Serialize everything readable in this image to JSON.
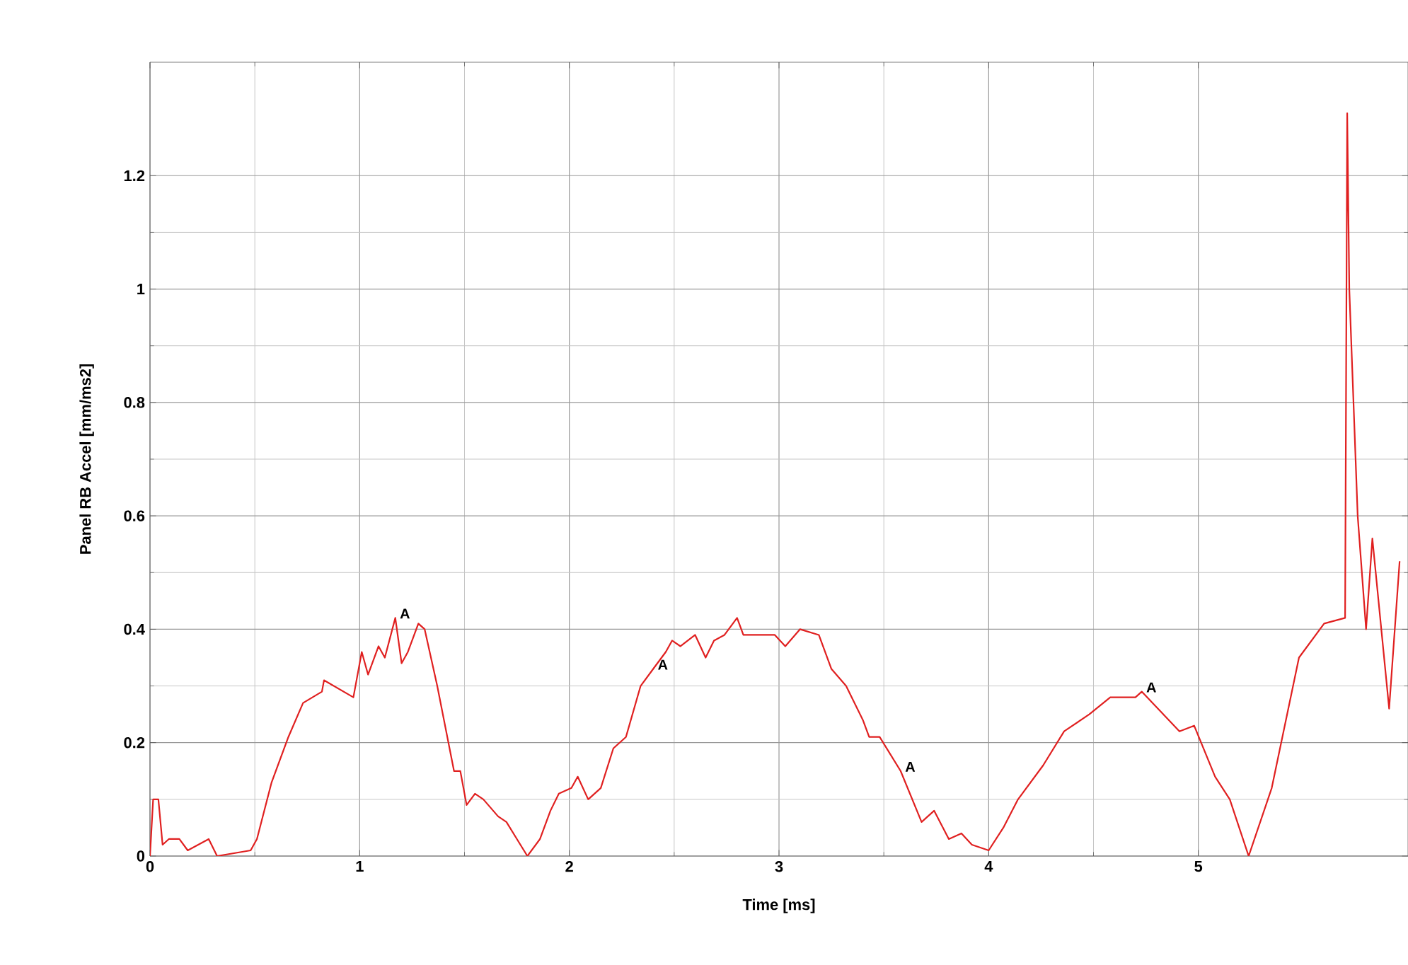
{
  "chart_data": {
    "type": "line",
    "xlabel": "Time [ms]",
    "ylabel": "Panel RB Accel [mm/ms2]",
    "xlim": [
      0,
      6
    ],
    "ylim": [
      0,
      1.4
    ],
    "xticks": [
      0,
      1,
      2,
      3,
      4,
      5
    ],
    "yticks": [
      0,
      0.2,
      0.4,
      0.6,
      0.8,
      1,
      1.2
    ],
    "grid": true,
    "line_style": "solid",
    "series": [
      {
        "color": "#e02020",
        "x": [
          0.0,
          0.015,
          0.04,
          0.06,
          0.09,
          0.14,
          0.18,
          0.28,
          0.32,
          0.48,
          0.51,
          0.58,
          0.66,
          0.73,
          0.82,
          0.83,
          0.97,
          1.01,
          1.04,
          1.09,
          1.12,
          1.17,
          1.2,
          1.23,
          1.28,
          1.31,
          1.37,
          1.45,
          1.48,
          1.51,
          1.55,
          1.59,
          1.66,
          1.7,
          1.75,
          1.8,
          1.86,
          1.91,
          1.95,
          2.01,
          2.04,
          2.09,
          2.15,
          2.21,
          2.27,
          2.34,
          2.4,
          2.46,
          2.49,
          2.53,
          2.6,
          2.65,
          2.69,
          2.74,
          2.8,
          2.83,
          2.92,
          2.98,
          3.03,
          3.1,
          3.19,
          3.25,
          3.32,
          3.4,
          3.43,
          3.48,
          3.58,
          3.68,
          3.74,
          3.81,
          3.87,
          3.92,
          4.0,
          4.07,
          4.14,
          4.26,
          4.36,
          4.48,
          4.58,
          4.7,
          4.73,
          4.91,
          4.98,
          5.08,
          5.15,
          5.24,
          5.35,
          5.48,
          5.6,
          5.7,
          5.71,
          5.72,
          5.76,
          5.8,
          5.83,
          5.91,
          5.96
        ],
        "values": [
          0.0,
          0.1,
          0.1,
          0.02,
          0.03,
          0.03,
          0.01,
          0.03,
          0.0,
          0.01,
          0.03,
          0.13,
          0.21,
          0.27,
          0.29,
          0.31,
          0.28,
          0.36,
          0.32,
          0.37,
          0.35,
          0.42,
          0.34,
          0.36,
          0.41,
          0.4,
          0.3,
          0.15,
          0.15,
          0.09,
          0.11,
          0.1,
          0.07,
          0.06,
          0.03,
          0.0,
          0.03,
          0.08,
          0.11,
          0.12,
          0.14,
          0.1,
          0.12,
          0.19,
          0.21,
          0.3,
          0.33,
          0.36,
          0.38,
          0.37,
          0.39,
          0.35,
          0.38,
          0.39,
          0.42,
          0.39,
          0.39,
          0.39,
          0.37,
          0.4,
          0.39,
          0.33,
          0.3,
          0.24,
          0.21,
          0.21,
          0.15,
          0.06,
          0.08,
          0.03,
          0.04,
          0.02,
          0.01,
          0.05,
          0.1,
          0.16,
          0.22,
          0.25,
          0.28,
          0.28,
          0.29,
          0.22,
          0.23,
          0.14,
          0.1,
          0.0,
          0.12,
          0.35,
          0.41,
          0.42,
          1.31,
          1.0,
          0.6,
          0.4,
          0.56,
          0.26,
          0.52
        ]
      }
    ],
    "annotations": [
      {
        "text": "A",
        "x": 1.17,
        "y": 0.42
      },
      {
        "text": "A",
        "x": 2.4,
        "y": 0.33
      },
      {
        "text": "A",
        "x": 3.58,
        "y": 0.15
      },
      {
        "text": "A",
        "x": 4.73,
        "y": 0.29
      }
    ]
  }
}
